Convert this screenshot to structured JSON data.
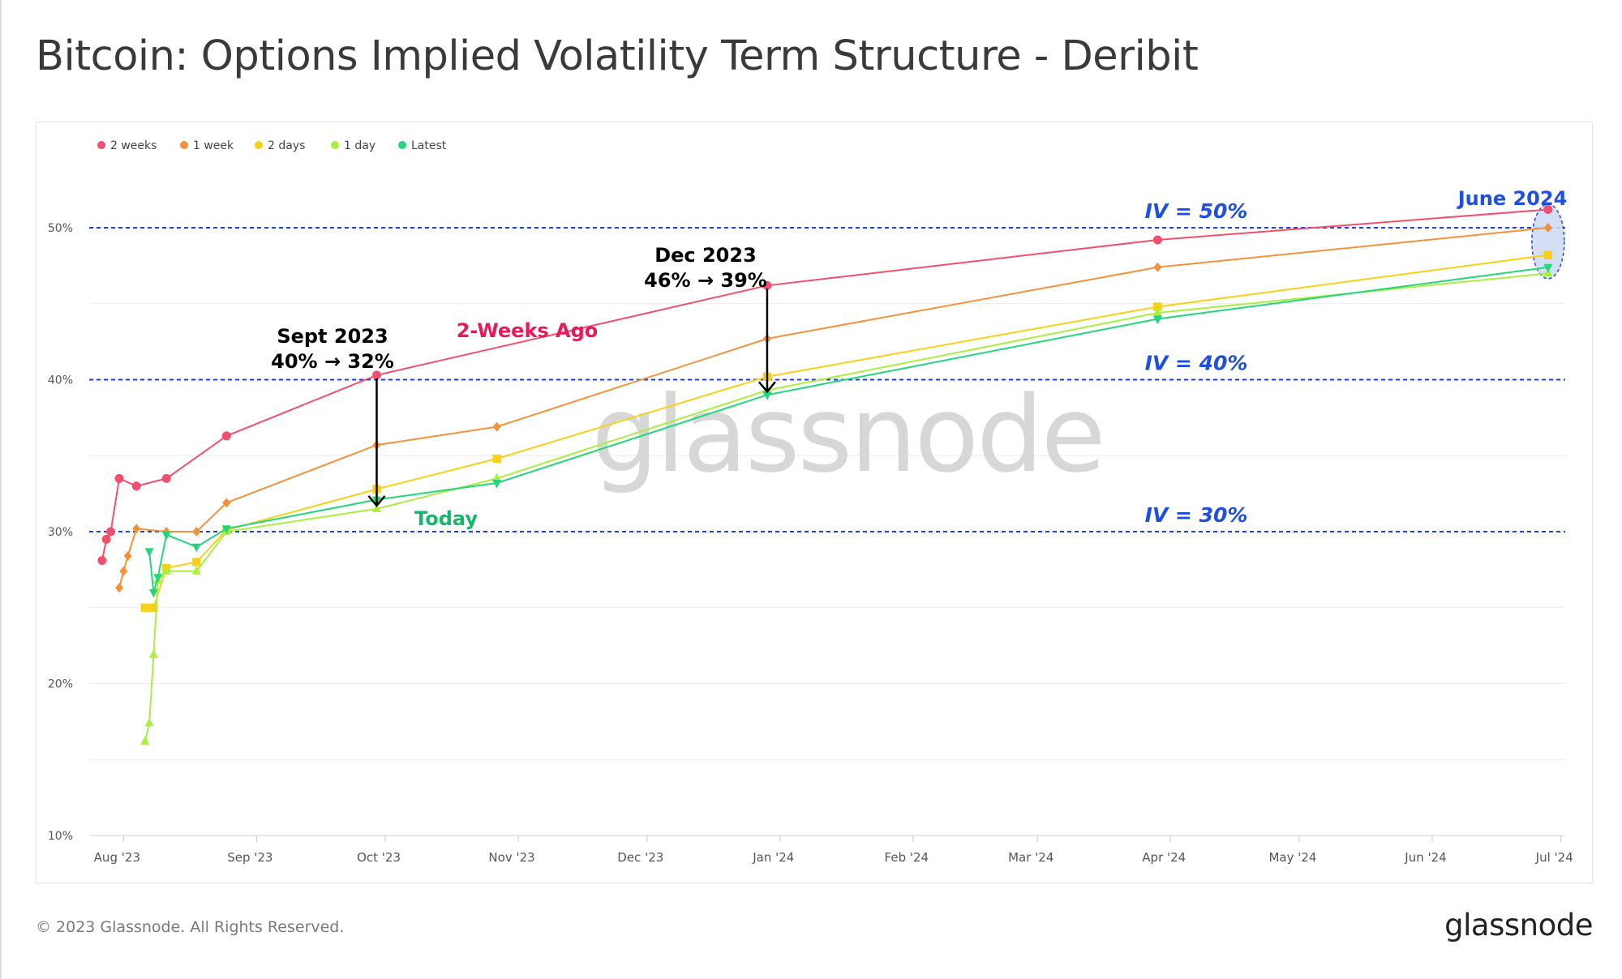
{
  "title": "Bitcoin: Options Implied Volatility Term Structure - Deribit",
  "footer": {
    "copyright": "© 2023 Glassnode. All Rights Reserved.",
    "logo": "glassnode"
  },
  "watermark": "glassnode",
  "colors": {
    "2 weeks": "#f0506e",
    "1 week": "#f5913b",
    "2 days": "#f7d117",
    "1 day": "#a8ef3f",
    "Latest": "#22d67a",
    "reference_line": "#1f3de0",
    "annotation_red": "#e8195a",
    "annotation_green": "#13b96b",
    "annotation_blue": "#1f4fe0"
  },
  "chart_data": {
    "type": "line",
    "title": "Bitcoin: Options Implied Volatility Term Structure - Deribit",
    "xlabel": "",
    "ylabel": "",
    "x_ticks": [
      "Aug '23",
      "Sep '23",
      "Oct '23",
      "Nov '23",
      "Dec '23",
      "Jan '24",
      "Feb '24",
      "Mar '24",
      "Apr '24",
      "May '24",
      "Jun '24",
      "Jul '24"
    ],
    "y_ticks": [
      "10%",
      "20%",
      "30%",
      "40%",
      "50%"
    ],
    "xlim": [
      "2023-07-24",
      "2024-07-02"
    ],
    "ylim": [
      10,
      54
    ],
    "grid": true,
    "legend": "top-left",
    "series": [
      {
        "name": "2 weeks",
        "marker": "circle",
        "points": [
          [
            "2023-07-27",
            28.1
          ],
          [
            "2023-07-28",
            29.5
          ],
          [
            "2023-07-29",
            30.0
          ],
          [
            "2023-07-31",
            33.5
          ],
          [
            "2023-08-04",
            33.0
          ],
          [
            "2023-08-11",
            33.5
          ],
          [
            "2023-08-25",
            36.3
          ],
          [
            "2023-09-29",
            40.3
          ],
          [
            "2023-12-29",
            46.2
          ],
          [
            "2024-03-29",
            49.2
          ],
          [
            "2024-06-28",
            51.2
          ]
        ]
      },
      {
        "name": "1 week",
        "marker": "diamond",
        "points": [
          [
            "2023-07-31",
            26.3
          ],
          [
            "2023-08-01",
            27.4
          ],
          [
            "2023-08-02",
            28.4
          ],
          [
            "2023-08-04",
            30.2
          ],
          [
            "2023-08-11",
            30.0
          ],
          [
            "2023-08-18",
            30.0
          ],
          [
            "2023-08-25",
            31.9
          ],
          [
            "2023-09-29",
            35.7
          ],
          [
            "2023-10-27",
            36.9
          ],
          [
            "2023-12-29",
            42.7
          ],
          [
            "2024-03-29",
            47.4
          ],
          [
            "2024-06-28",
            50.0
          ]
        ]
      },
      {
        "name": "2 days",
        "marker": "square",
        "points": [
          [
            "2023-08-06",
            25.0
          ],
          [
            "2023-08-08",
            25.0
          ],
          [
            "2023-08-11",
            27.6
          ],
          [
            "2023-08-18",
            28.0
          ],
          [
            "2023-08-25",
            30.1
          ],
          [
            "2023-09-29",
            32.8
          ],
          [
            "2023-10-27",
            34.8
          ],
          [
            "2023-12-29",
            40.2
          ],
          [
            "2024-03-29",
            44.8
          ],
          [
            "2024-06-28",
            48.2
          ]
        ]
      },
      {
        "name": "1 day",
        "marker": "triangle-up",
        "points": [
          [
            "2023-08-06",
            16.2
          ],
          [
            "2023-08-07",
            17.4
          ],
          [
            "2023-08-08",
            21.9
          ],
          [
            "2023-08-09",
            26.8
          ],
          [
            "2023-08-11",
            27.4
          ],
          [
            "2023-08-18",
            27.4
          ],
          [
            "2023-08-25",
            30.0
          ],
          [
            "2023-09-29",
            31.5
          ],
          [
            "2023-10-27",
            33.5
          ],
          [
            "2023-12-29",
            39.3
          ],
          [
            "2024-03-29",
            44.4
          ],
          [
            "2024-06-28",
            47.0
          ]
        ]
      },
      {
        "name": "Latest",
        "marker": "triangle-down",
        "points": [
          [
            "2023-08-07",
            28.7
          ],
          [
            "2023-08-08",
            26.0
          ],
          [
            "2023-08-09",
            27.0
          ],
          [
            "2023-08-11",
            29.8
          ],
          [
            "2023-08-18",
            29.0
          ],
          [
            "2023-08-25",
            30.2
          ],
          [
            "2023-09-29",
            32.1
          ],
          [
            "2023-10-27",
            33.2
          ],
          [
            "2023-12-29",
            39.0
          ],
          [
            "2024-03-29",
            44.0
          ],
          [
            "2024-06-28",
            47.4
          ]
        ]
      }
    ],
    "reference_lines": [
      {
        "y": 50,
        "label": "IV = 50%"
      },
      {
        "y": 40,
        "label": "IV = 40%"
      },
      {
        "y": 30,
        "label": "IV = 30%"
      }
    ],
    "annotations": [
      {
        "lines": [
          "Sept 2023",
          "40% → 32%"
        ],
        "x": "2023-09-29",
        "y_from": 40.3,
        "y_to": 31.5
      },
      {
        "lines": [
          "Dec 2023",
          "46% → 39%"
        ],
        "x": "2023-12-29",
        "y_from": 46.2,
        "y_to": 39.0
      },
      {
        "text": "2-Weeks Ago"
      },
      {
        "text": "Today"
      },
      {
        "text": "June 2024"
      }
    ]
  }
}
